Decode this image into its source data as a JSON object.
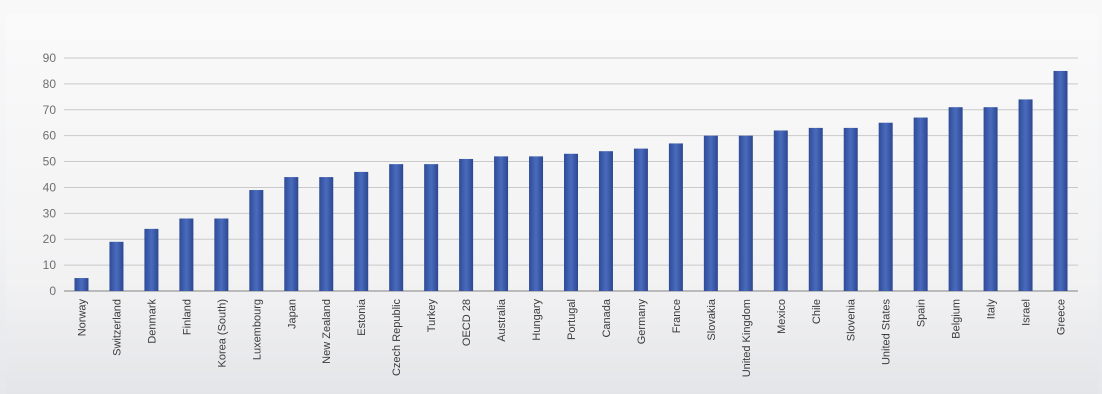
{
  "chart_data": {
    "type": "bar",
    "title": "",
    "xlabel": "",
    "ylabel": "",
    "ylim": [
      0,
      90
    ],
    "yticks": [
      0,
      10,
      20,
      30,
      40,
      50,
      60,
      70,
      80,
      90
    ],
    "grid": true,
    "legend": "none",
    "bar_color": "#3b5aa8",
    "categories": [
      "Norway",
      "Switzerland",
      "Denmark",
      "Finland",
      "Korea (South)",
      "Luxembourg",
      "Japan",
      "New Zealand",
      "Estonia",
      "Czech Republic",
      "Turkey",
      "OECD 28",
      "Australia",
      "Hungary",
      "Portugal",
      "Canada",
      "Germany",
      "France",
      "Slovakia",
      "United Kingdom",
      "Mexico",
      "Chile",
      "Slovenia",
      "United States",
      "Spain",
      "Belgium",
      "Italy",
      "Israel",
      "Greece"
    ],
    "values": [
      5,
      19,
      24,
      28,
      28,
      39,
      44,
      44,
      46,
      49,
      49,
      51,
      52,
      52,
      53,
      54,
      55,
      57,
      60,
      60,
      62,
      63,
      63,
      65,
      67,
      71,
      71,
      74,
      85
    ]
  }
}
